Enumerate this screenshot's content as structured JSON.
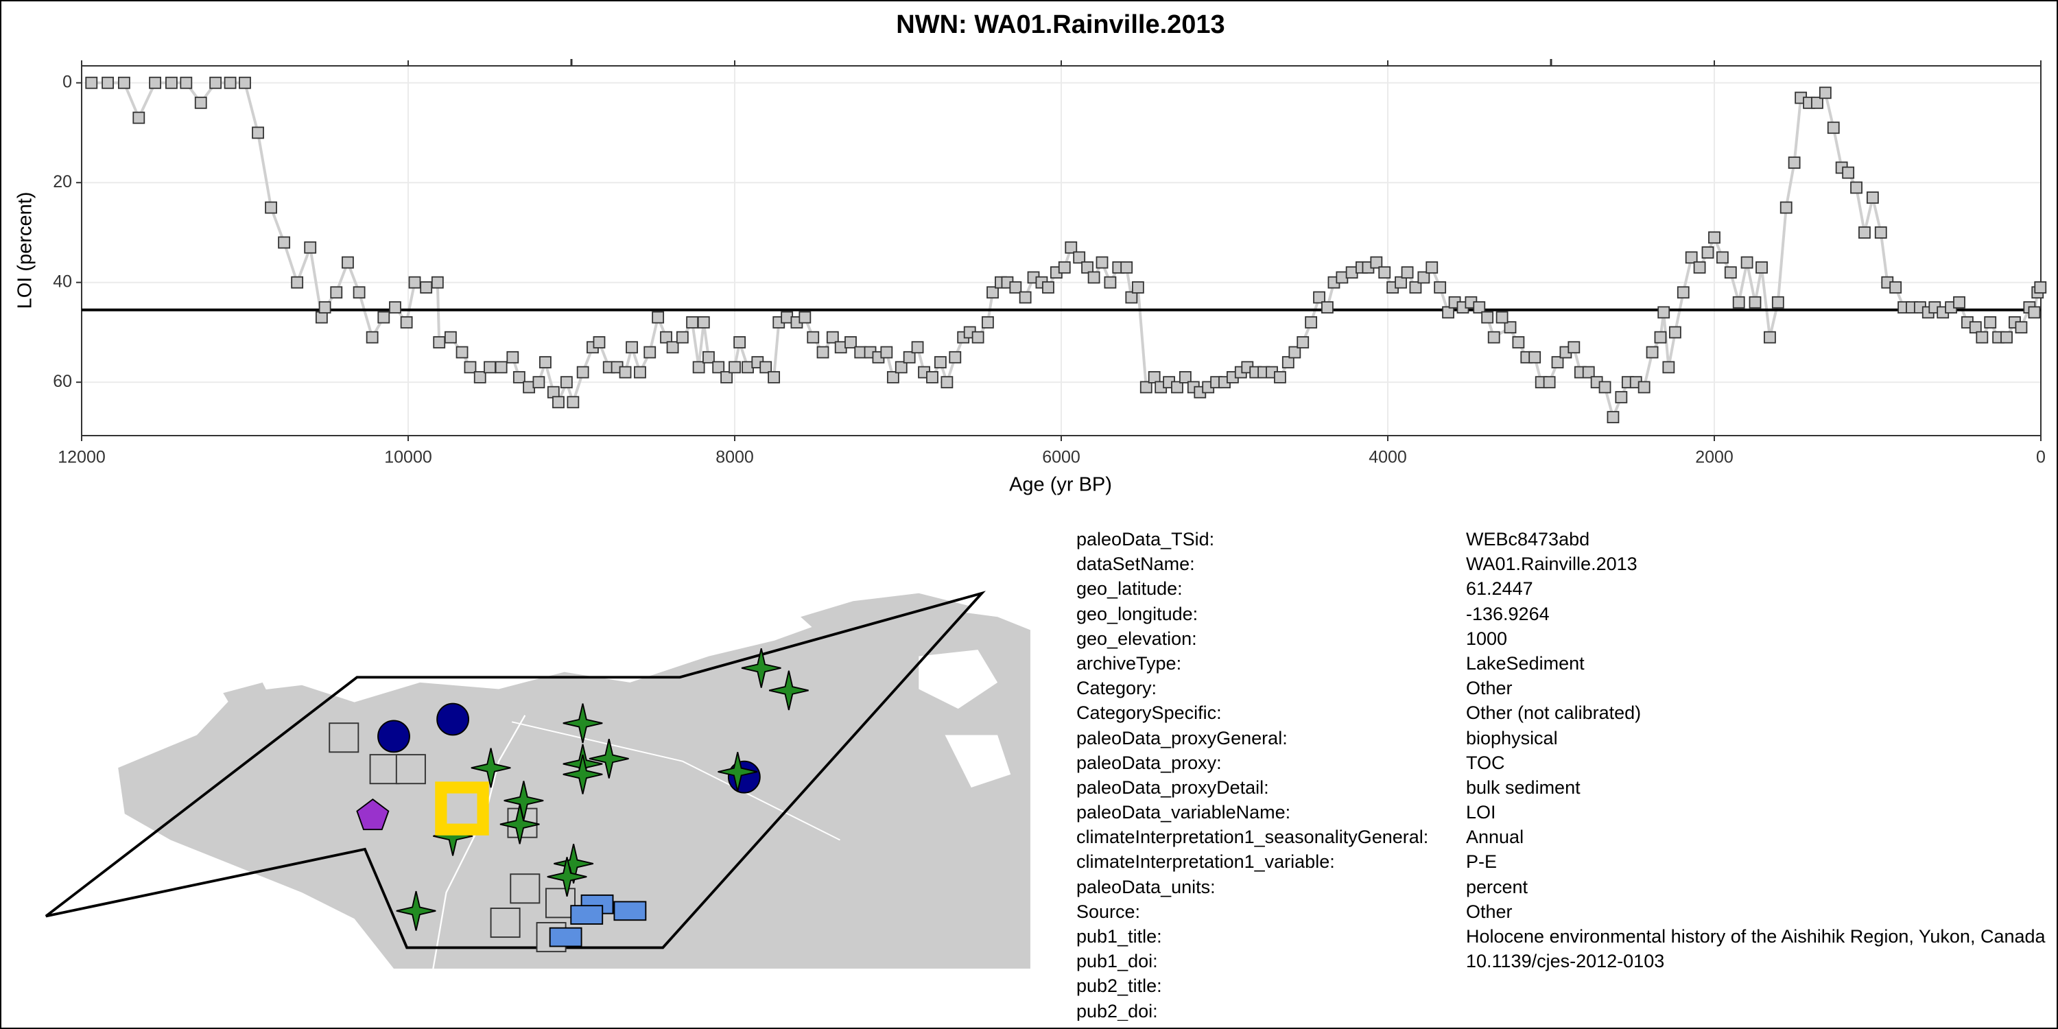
{
  "chart_data": {
    "type": "line",
    "title": "NWN: WA01.Rainville.2013",
    "x_label": "Age (yr BP)",
    "y_label": "LOI (percent)",
    "x": [
      11940,
      11840,
      11740,
      11650,
      11550,
      11450,
      11360,
      11270,
      11180,
      11090,
      11000,
      10920,
      10840,
      10760,
      10680,
      10600,
      10530,
      10510,
      10440,
      10370,
      10300,
      10220,
      10150,
      10080,
      10010,
      9960,
      9890,
      9820,
      9810,
      9740,
      9670,
      9620,
      9560,
      9500,
      9430,
      9360,
      9320,
      9260,
      9200,
      9160,
      9110,
      9080,
      9030,
      8990,
      8930,
      8870,
      8830,
      8770,
      8720,
      8670,
      8630,
      8580,
      8520,
      8470,
      8420,
      8380,
      8320,
      8260,
      8220,
      8190,
      8160,
      8100,
      8050,
      8000,
      7970,
      7920,
      7860,
      7810,
      7760,
      7730,
      7680,
      7620,
      7570,
      7520,
      7460,
      7400,
      7350,
      7290,
      7230,
      7170,
      7120,
      7070,
      7030,
      6980,
      6930,
      6880,
      6840,
      6790,
      6740,
      6700,
      6650,
      6600,
      6560,
      6510,
      6450,
      6420,
      6370,
      6330,
      6280,
      6220,
      6170,
      6120,
      6080,
      6030,
      5980,
      5940,
      5890,
      5840,
      5800,
      5750,
      5700,
      5650,
      5600,
      5570,
      5530,
      5480,
      5430,
      5390,
      5340,
      5290,
      5240,
      5190,
      5150,
      5100,
      5050,
      5000,
      4950,
      4900,
      4860,
      4810,
      4760,
      4710,
      4660,
      4610,
      4570,
      4520,
      4470,
      4420,
      4370,
      4330,
      4280,
      4220,
      4160,
      4120,
      4070,
      4020,
      3970,
      3920,
      3880,
      3830,
      3780,
      3730,
      3680,
      3630,
      3590,
      3540,
      3490,
      3440,
      3390,
      3350,
      3250,
      3300,
      3200,
      3150,
      3100,
      3060,
      3010,
      2960,
      2910,
      2860,
      2820,
      2770,
      2720,
      2670,
      2620,
      2570,
      2530,
      2480,
      2430,
      2380,
      2330,
      2310,
      2280,
      2240,
      2190,
      2140,
      2090,
      2040,
      2000,
      1950,
      1900,
      1850,
      1800,
      1750,
      1710,
      1660,
      1610,
      1560,
      1510,
      1470,
      1420,
      1370,
      1320,
      1270,
      1220,
      1180,
      1130,
      1080,
      1030,
      980,
      940,
      890,
      840,
      790,
      740,
      690,
      650,
      600,
      550,
      500,
      450,
      400,
      360,
      310,
      260,
      210,
      160,
      120,
      70,
      40,
      20,
      3
    ],
    "values": [
      0,
      0,
      0,
      7,
      0,
      0,
      0,
      4,
      0,
      0,
      0,
      10,
      25,
      32,
      40,
      33,
      47,
      45,
      42,
      36,
      42,
      51,
      47,
      45,
      48,
      40,
      41,
      40,
      52,
      51,
      54,
      57,
      59,
      57,
      57,
      55,
      59,
      61,
      60,
      56,
      62,
      64,
      60,
      64,
      58,
      53,
      52,
      57,
      57,
      58,
      53,
      58,
      54,
      47,
      51,
      53,
      51,
      48,
      57,
      48,
      55,
      57,
      59,
      57,
      52,
      57,
      56,
      57,
      59,
      48,
      47,
      48,
      47,
      51,
      54,
      51,
      53,
      52,
      54,
      54,
      55,
      54,
      59,
      57,
      55,
      53,
      58,
      59,
      56,
      60,
      55,
      51,
      50,
      51,
      48,
      42,
      40,
      40,
      41,
      43,
      39,
      40,
      41,
      38,
      37,
      33,
      35,
      37,
      39,
      36,
      40,
      37,
      37,
      43,
      41,
      61,
      59,
      61,
      60,
      61,
      59,
      61,
      62,
      61,
      60,
      60,
      59,
      58,
      57,
      58,
      58,
      58,
      59,
      56,
      54,
      52,
      48,
      43,
      45,
      40,
      39,
      38,
      37,
      37,
      36,
      38,
      41,
      40,
      38,
      41,
      39,
      37,
      41,
      46,
      44,
      45,
      44,
      45,
      47,
      51,
      49,
      47,
      52,
      55,
      55,
      60,
      60,
      56,
      54,
      53,
      58,
      58,
      60,
      61,
      67,
      63,
      60,
      60,
      61,
      54,
      51,
      46,
      57,
      50,
      42,
      35,
      37,
      34,
      31,
      35,
      38,
      44,
      36,
      44,
      37,
      51,
      44,
      25,
      16,
      3,
      4,
      4,
      2,
      9,
      17,
      18,
      21,
      30,
      23,
      30,
      40,
      41,
      45,
      45,
      45,
      46,
      45,
      46,
      45,
      44,
      48,
      49,
      51,
      48,
      51,
      51,
      48,
      49,
      45,
      46,
      42,
      41
    ],
    "color": "#c8c8c8",
    "hline": 45.5,
    "xlim": [
      12000,
      0
    ],
    "xticks": [
      12000,
      10000,
      8000,
      6000,
      4000,
      2000,
      0
    ],
    "top_ticks": [
      9000,
      3000
    ],
    "ylim": [
      70.7,
      -3.4
    ],
    "yticks": [
      0,
      20,
      40,
      60
    ],
    "grid": true
  },
  "metadata": {
    "rows": [
      [
        "paleoData_TSid:",
        "WEBc8473abd"
      ],
      [
        "dataSetName:",
        "WA01.Rainville.2013"
      ],
      [
        "geo_latitude:",
        "61.2447"
      ],
      [
        "geo_longitude:",
        "-136.9264"
      ],
      [
        "geo_elevation:",
        "1000"
      ],
      [
        "archiveType:",
        "LakeSediment"
      ],
      [
        "Category:",
        "Other"
      ],
      [
        "CategorySpecific:",
        "Other (not calibrated)"
      ],
      [
        "paleoData_proxyGeneral:",
        "biophysical"
      ],
      [
        "paleoData_proxy:",
        "TOC"
      ],
      [
        "paleoData_proxyDetail:",
        "bulk sediment"
      ],
      [
        "paleoData_variableName:",
        "LOI"
      ],
      [
        "climateInterpretation1_seasonalityGeneral:",
        "Annual"
      ],
      [
        "climateInterpretation1_variable:",
        "P-E"
      ],
      [
        "paleoData_units:",
        "percent"
      ],
      [
        "Source:",
        "Other"
      ],
      [
        "pub1_title:",
        "Holocene environmental history of the Aishihik Region, Yukon, Canada"
      ],
      [
        "pub1_doi:",
        "10.1139/cjes-2012-0103"
      ],
      [
        "pub2_title:",
        ""
      ],
      [
        "pub2_doi:",
        ""
      ]
    ]
  }
}
